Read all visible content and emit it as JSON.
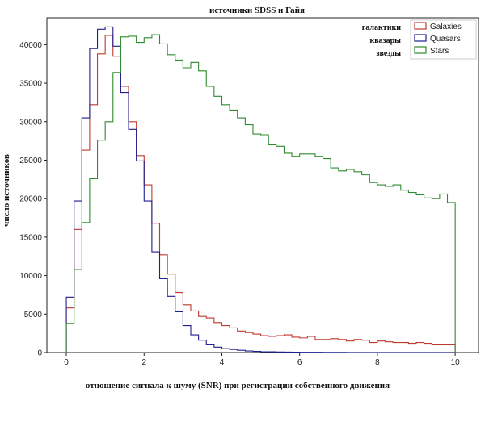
{
  "chart_data": {
    "type": "step-histogram",
    "title": "источники SDSS и Гайя",
    "xlabel": "отношение сигнала к шуму (SNR) при регистрации собственного движения",
    "ylabel": "число источников",
    "xlim": [
      -0.5,
      10.6
    ],
    "ylim": [
      0,
      43500
    ],
    "xticks": [
      0,
      2,
      4,
      6,
      8,
      10
    ],
    "yticks": [
      0,
      5000,
      10000,
      15000,
      20000,
      25000,
      30000,
      35000,
      40000
    ],
    "grid": false,
    "legend_position": "top-right",
    "legend_labels_ru": [
      "галактики",
      "квазары",
      "звезды"
    ],
    "bin_edges": [
      0,
      0.2,
      0.4,
      0.6,
      0.8,
      1.0,
      1.2,
      1.4,
      1.6,
      1.8,
      2.0,
      2.2,
      2.4,
      2.6,
      2.8,
      3.0,
      3.2,
      3.4,
      3.6,
      3.8,
      4.0,
      4.2,
      4.4,
      4.6,
      4.8,
      5.0,
      5.2,
      5.4,
      5.6,
      5.8,
      6.0,
      6.2,
      6.4,
      6.6,
      6.8,
      7.0,
      7.2,
      7.4,
      7.6,
      7.8,
      8.0,
      8.2,
      8.4,
      8.6,
      8.8,
      9.0,
      9.2,
      9.4,
      9.6,
      9.8,
      10.0
    ],
    "series": [
      {
        "name": "Galaxies",
        "color": "#c0392b",
        "values": [
          5800,
          16000,
          26300,
          32200,
          38800,
          41200,
          38500,
          34600,
          30000,
          25600,
          21800,
          16800,
          12700,
          10200,
          7800,
          6200,
          5400,
          4700,
          4500,
          3900,
          3500,
          3200,
          2800,
          2600,
          2400,
          2200,
          2100,
          2200,
          2300,
          2000,
          1900,
          2100,
          1700,
          1700,
          1800,
          1700,
          1500,
          1700,
          1600,
          1300,
          1500,
          1400,
          1300,
          1300,
          1200,
          1300,
          1200,
          1100,
          1100,
          1100
        ]
      },
      {
        "name": "Quasars",
        "color": "#1f1f8f",
        "values": [
          7200,
          19700,
          30500,
          39500,
          42000,
          42300,
          39800,
          33800,
          29000,
          24900,
          19700,
          13100,
          9600,
          7300,
          5300,
          3500,
          2300,
          1600,
          1100,
          700,
          500,
          400,
          300,
          200,
          150,
          100,
          100,
          80,
          60,
          50,
          40,
          30,
          30,
          20,
          20,
          20,
          10,
          10,
          10,
          10,
          10,
          10,
          10,
          10,
          10,
          10,
          10,
          10,
          10,
          10
        ]
      },
      {
        "name": "Stars",
        "color": "#2e8b2e",
        "values": [
          3800,
          10800,
          16900,
          22600,
          27600,
          30000,
          36400,
          41000,
          41100,
          40300,
          40900,
          41300,
          40100,
          38700,
          38000,
          37000,
          37700,
          36600,
          34600,
          33300,
          32200,
          31500,
          30500,
          29600,
          28400,
          28300,
          27000,
          26800,
          25900,
          25500,
          25800,
          25800,
          25500,
          25200,
          24000,
          23600,
          23800,
          23500,
          23100,
          22100,
          21800,
          21600,
          21800,
          21100,
          20800,
          20500,
          20100,
          20000,
          20600,
          19500
        ]
      }
    ]
  }
}
